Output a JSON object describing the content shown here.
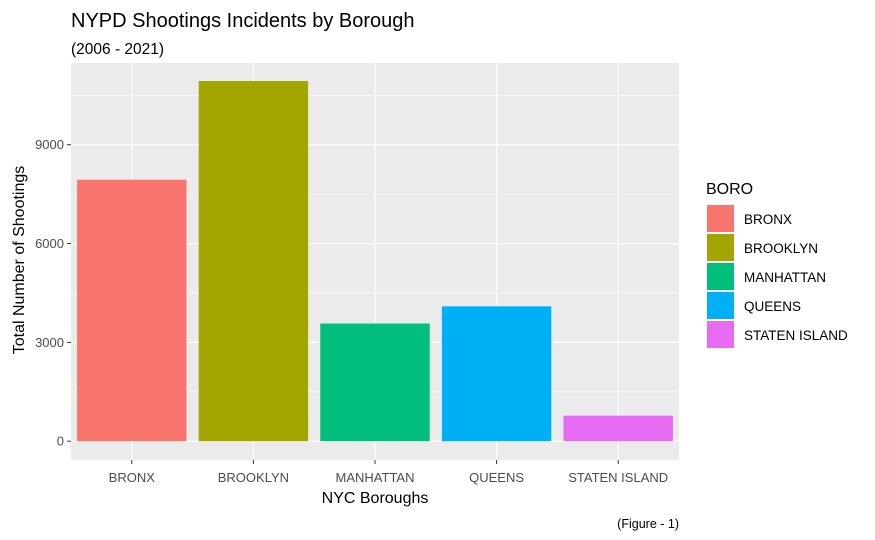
{
  "chart_data": {
    "type": "bar",
    "title": "NYPD Shootings Incidents by Borough",
    "subtitle": "(2006 - 2021)",
    "caption": "(Figure - 1)",
    "xlabel": "NYC Boroughs",
    "ylabel": "Total Number of Shootings",
    "categories": [
      "BRONX",
      "BROOKLYN",
      "MANHATTAN",
      "QUEENS",
      "STATEN ISLAND"
    ],
    "values": [
      7937,
      10933,
      3572,
      4094,
      776
    ],
    "colors": [
      "#F8766D",
      "#A3A500",
      "#00BF7D",
      "#00B0F6",
      "#E76BF3"
    ],
    "yticks": [
      0,
      3000,
      6000,
      9000
    ],
    "ylim": [
      -570,
      11480
    ],
    "grid": true,
    "background": "#EBEBEB",
    "legend": {
      "title": "BORO",
      "position": "right",
      "entries": [
        "BRONX",
        "BROOKLYN",
        "MANHATTAN",
        "QUEENS",
        "STATEN ISLAND"
      ]
    }
  }
}
